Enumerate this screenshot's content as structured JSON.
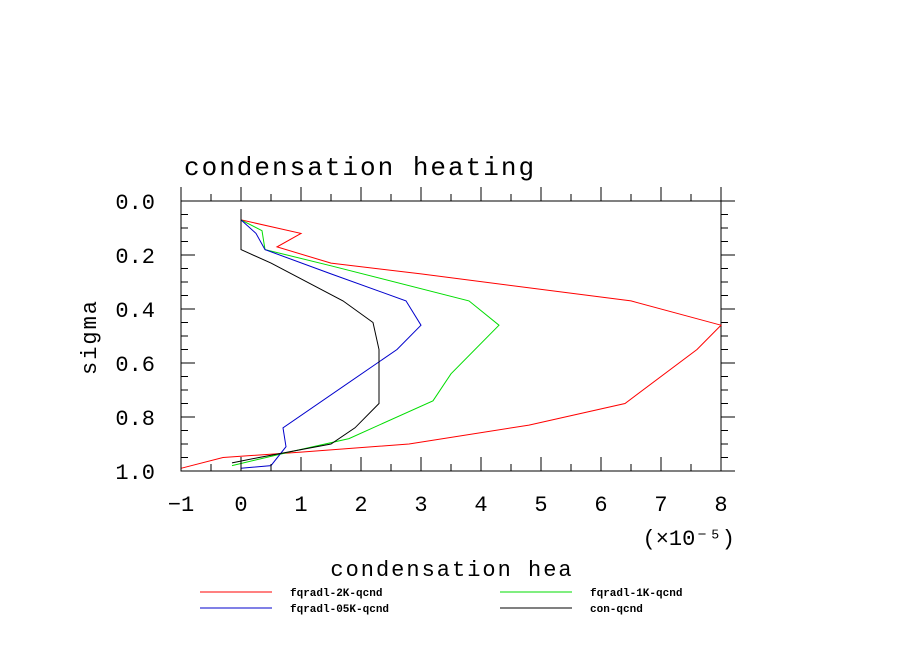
{
  "chart_data": {
    "type": "line",
    "title": "condensation heating",
    "xlabel": "condensation hea",
    "ylabel": "sigma",
    "x_scale_label": "(×10⁻⁵)",
    "xlim": [
      -1,
      8
    ],
    "ylim": [
      0.0,
      1.0
    ],
    "y_inverted": true,
    "x_ticks": [
      -1,
      0,
      1,
      2,
      3,
      4,
      5,
      6,
      7,
      8
    ],
    "x_tick_labels": [
      "−1",
      "0",
      "1",
      "2",
      "3",
      "4",
      "5",
      "6",
      "7",
      "8"
    ],
    "y_ticks": [
      0.0,
      0.2,
      0.4,
      0.6,
      0.8,
      1.0
    ],
    "y_tick_labels": [
      "0.0",
      "0.2",
      "0.4",
      "0.6",
      "0.8",
      "1.0"
    ],
    "grid": false,
    "legend_position": "bottom",
    "series": [
      {
        "name": "fqradl-2K-qcnd",
        "color": "#ff0000",
        "points": [
          [
            0.0,
            0.03
          ],
          [
            0.0,
            0.07
          ],
          [
            1.0,
            0.12
          ],
          [
            0.6,
            0.17
          ],
          [
            1.5,
            0.23
          ],
          [
            3.0,
            0.27
          ],
          [
            6.5,
            0.37
          ],
          [
            8.0,
            0.46
          ],
          [
            7.6,
            0.55
          ],
          [
            6.4,
            0.75
          ],
          [
            4.8,
            0.83
          ],
          [
            2.8,
            0.9
          ],
          [
            1.0,
            0.93
          ],
          [
            -0.3,
            0.95
          ],
          [
            -1.0,
            0.99
          ]
        ]
      },
      {
        "name": "fqradl-1K-qcnd",
        "color": "#00dd00",
        "points": [
          [
            0.0,
            0.03
          ],
          [
            0.0,
            0.07
          ],
          [
            0.35,
            0.11
          ],
          [
            0.4,
            0.18
          ],
          [
            1.5,
            0.24
          ],
          [
            3.8,
            0.37
          ],
          [
            4.3,
            0.46
          ],
          [
            3.5,
            0.64
          ],
          [
            3.2,
            0.74
          ],
          [
            1.8,
            0.88
          ],
          [
            0.8,
            0.93
          ],
          [
            -0.15,
            0.98
          ]
        ]
      },
      {
        "name": "fqradl-05K-qcnd",
        "color": "#0000cc",
        "points": [
          [
            0.0,
            0.03
          ],
          [
            0.0,
            0.07
          ],
          [
            0.25,
            0.12
          ],
          [
            0.4,
            0.18
          ],
          [
            1.5,
            0.27
          ],
          [
            2.75,
            0.37
          ],
          [
            3.0,
            0.46
          ],
          [
            2.6,
            0.55
          ],
          [
            0.7,
            0.84
          ],
          [
            0.75,
            0.91
          ],
          [
            0.5,
            0.98
          ],
          [
            0.0,
            0.99
          ]
        ]
      },
      {
        "name": "con-qcnd",
        "color": "#000000",
        "points": [
          [
            0.0,
            0.03
          ],
          [
            0.0,
            0.18
          ],
          [
            0.5,
            0.23
          ],
          [
            1.7,
            0.37
          ],
          [
            2.2,
            0.45
          ],
          [
            2.3,
            0.55
          ],
          [
            2.3,
            0.75
          ],
          [
            1.9,
            0.84
          ],
          [
            1.5,
            0.9
          ],
          [
            0.3,
            0.95
          ],
          [
            -0.15,
            0.97
          ]
        ]
      }
    ]
  }
}
